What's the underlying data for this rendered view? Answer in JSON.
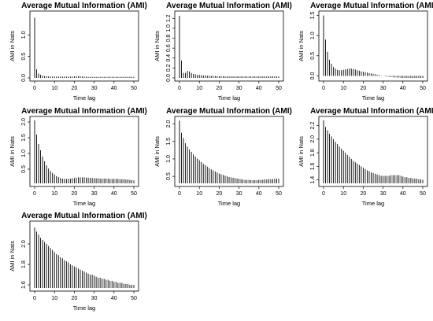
{
  "chart_data": [
    {
      "type": "bar",
      "title": "Average Mutual Information (AMI)",
      "xlabel": "Time lag",
      "ylabel": "AMI in Nats",
      "xlim": [
        0,
        50
      ],
      "ylim": [
        0,
        1.5
      ],
      "xticks": [
        0,
        10,
        20,
        30,
        40,
        50
      ],
      "yticks": [
        0.0,
        0.5,
        1.0
      ],
      "x": [
        0,
        1,
        2,
        3,
        4,
        5,
        6,
        7,
        8,
        9,
        10,
        11,
        12,
        13,
        14,
        15,
        16,
        17,
        18,
        19,
        20,
        21,
        22,
        23,
        24,
        25,
        26,
        27,
        28,
        29,
        30,
        31,
        32,
        33,
        34,
        35,
        36,
        37,
        38,
        39,
        40,
        41,
        42,
        43,
        44,
        45,
        46,
        47,
        48,
        49,
        50
      ],
      "values": [
        1.4,
        0.2,
        0.1,
        0.07,
        0.05,
        0.04,
        0.04,
        0.035,
        0.03,
        0.03,
        0.03,
        0.03,
        0.03,
        0.03,
        0.03,
        0.03,
        0.03,
        0.03,
        0.03,
        0.03,
        0.035,
        0.04,
        0.04,
        0.04,
        0.035,
        0.03,
        0.03,
        0.025,
        0.025,
        0.025,
        0.025,
        0.025,
        0.025,
        0.025,
        0.025,
        0.025,
        0.025,
        0.025,
        0.025,
        0.025,
        0.025,
        0.025,
        0.025,
        0.025,
        0.025,
        0.025,
        0.025,
        0.025,
        0.025,
        0.025,
        0.025
      ]
    },
    {
      "type": "bar",
      "title": "Average Mutual Information (AMI)",
      "xlabel": "Time lag",
      "ylabel": "AMI in Nats",
      "xlim": [
        0,
        50
      ],
      "ylim": [
        0,
        1.3
      ],
      "xticks": [
        0,
        10,
        20,
        30,
        40,
        50
      ],
      "yticks": [
        0.0,
        0.2,
        0.4,
        0.6,
        0.8,
        1.0,
        1.2
      ],
      "x": [
        0,
        1,
        2,
        3,
        4,
        5,
        6,
        7,
        8,
        9,
        10,
        11,
        12,
        13,
        14,
        15,
        16,
        17,
        18,
        19,
        20,
        21,
        22,
        23,
        24,
        25,
        26,
        27,
        28,
        29,
        30,
        31,
        32,
        33,
        34,
        35,
        36,
        37,
        38,
        39,
        40,
        41,
        42,
        43,
        44,
        45,
        46,
        47,
        48,
        49,
        50
      ],
      "values": [
        1.25,
        0.35,
        0.1,
        0.1,
        0.14,
        0.13,
        0.1,
        0.08,
        0.07,
        0.06,
        0.06,
        0.055,
        0.05,
        0.05,
        0.045,
        0.045,
        0.04,
        0.04,
        0.04,
        0.035,
        0.035,
        0.035,
        0.035,
        0.03,
        0.03,
        0.03,
        0.03,
        0.03,
        0.03,
        0.03,
        0.03,
        0.03,
        0.03,
        0.03,
        0.03,
        0.03,
        0.03,
        0.03,
        0.03,
        0.03,
        0.03,
        0.03,
        0.03,
        0.03,
        0.03,
        0.03,
        0.03,
        0.03,
        0.03,
        0.03,
        0.03
      ]
    },
    {
      "type": "bar",
      "title": "Average Mutual Information (AMI)",
      "xlabel": "Time lag",
      "ylabel": "AMI in Nats",
      "xlim": [
        0,
        50
      ],
      "ylim": [
        -0.05,
        1.55
      ],
      "xticks": [
        0,
        10,
        20,
        30,
        40,
        50
      ],
      "yticks": [
        0.0,
        0.5,
        1.0,
        1.5
      ],
      "x": [
        0,
        1,
        2,
        3,
        4,
        5,
        6,
        7,
        8,
        9,
        10,
        11,
        12,
        13,
        14,
        15,
        16,
        17,
        18,
        19,
        20,
        21,
        22,
        23,
        24,
        25,
        26,
        27,
        28,
        29,
        30,
        31,
        32,
        33,
        34,
        35,
        36,
        37,
        38,
        39,
        40,
        41,
        42,
        43,
        44,
        45,
        46,
        47,
        48,
        49,
        50
      ],
      "values": [
        1.5,
        0.9,
        0.6,
        0.4,
        0.3,
        0.22,
        0.18,
        0.15,
        0.14,
        0.14,
        0.15,
        0.16,
        0.17,
        0.18,
        0.18,
        0.17,
        0.16,
        0.14,
        0.13,
        0.11,
        0.1,
        0.09,
        0.08,
        0.07,
        0.06,
        0.05,
        0.04,
        0.03,
        0.02,
        0.01,
        0.0,
        -0.01,
        -0.02,
        -0.02,
        -0.03,
        -0.03,
        -0.04,
        -0.04,
        -0.04,
        -0.05,
        -0.05,
        -0.05,
        -0.05,
        -0.05,
        -0.05,
        -0.05,
        -0.05,
        -0.05,
        -0.05,
        -0.05,
        -0.05
      ]
    },
    {
      "type": "bar",
      "title": "Average Mutual Information (AMI)",
      "xlabel": "Time lag",
      "ylabel": "AMI in Nats",
      "xlim": [
        0,
        50
      ],
      "ylim": [
        0.05,
        2.1
      ],
      "xticks": [
        0,
        10,
        20,
        30,
        40,
        50
      ],
      "yticks": [
        0.5,
        1.0,
        1.5,
        2.0
      ],
      "x": [
        0,
        1,
        2,
        3,
        4,
        5,
        6,
        7,
        8,
        9,
        10,
        11,
        12,
        13,
        14,
        15,
        16,
        17,
        18,
        19,
        20,
        21,
        22,
        23,
        24,
        25,
        26,
        27,
        28,
        29,
        30,
        31,
        32,
        33,
        34,
        35,
        36,
        37,
        38,
        39,
        40,
        41,
        42,
        43,
        44,
        45,
        46,
        47,
        48,
        49,
        50
      ],
      "values": [
        2.05,
        1.6,
        1.3,
        1.1,
        0.9,
        0.75,
        0.62,
        0.52,
        0.44,
        0.38,
        0.33,
        0.28,
        0.25,
        0.22,
        0.2,
        0.19,
        0.19,
        0.19,
        0.2,
        0.21,
        0.22,
        0.23,
        0.24,
        0.24,
        0.24,
        0.24,
        0.23,
        0.23,
        0.22,
        0.22,
        0.21,
        0.21,
        0.21,
        0.2,
        0.2,
        0.2,
        0.2,
        0.2,
        0.19,
        0.19,
        0.19,
        0.19,
        0.19,
        0.18,
        0.18,
        0.18,
        0.17,
        0.17,
        0.16,
        0.15,
        0.14
      ]
    },
    {
      "type": "bar",
      "title": "Average Mutual Information (AMI)",
      "xlabel": "Time lag",
      "ylabel": "AMI in Nats",
      "xlim": [
        0,
        50
      ],
      "ylim": [
        0.3,
        2.15
      ],
      "xticks": [
        0,
        10,
        20,
        30,
        40,
        50
      ],
      "yticks": [
        0.5,
        1.0,
        1.5,
        2.0
      ],
      "x": [
        0,
        1,
        2,
        3,
        4,
        5,
        6,
        7,
        8,
        9,
        10,
        11,
        12,
        13,
        14,
        15,
        16,
        17,
        18,
        19,
        20,
        21,
        22,
        23,
        24,
        25,
        26,
        27,
        28,
        29,
        30,
        31,
        32,
        33,
        34,
        35,
        36,
        37,
        38,
        39,
        40,
        41,
        42,
        43,
        44,
        45,
        46,
        47,
        48,
        49,
        50
      ],
      "values": [
        2.1,
        1.75,
        1.6,
        1.45,
        1.35,
        1.27,
        1.2,
        1.13,
        1.07,
        1.01,
        0.96,
        0.91,
        0.86,
        0.82,
        0.78,
        0.74,
        0.7,
        0.67,
        0.64,
        0.61,
        0.58,
        0.56,
        0.54,
        0.52,
        0.5,
        0.48,
        0.47,
        0.46,
        0.45,
        0.44,
        0.43,
        0.42,
        0.41,
        0.4,
        0.4,
        0.4,
        0.39,
        0.39,
        0.39,
        0.39,
        0.4,
        0.4,
        0.4,
        0.41,
        0.41,
        0.42,
        0.42,
        0.42,
        0.43,
        0.43,
        0.43
      ]
    },
    {
      "type": "bar",
      "title": "Average Mutual Information (AMI)",
      "xlabel": "Time lag",
      "ylabel": "AMI in Nats",
      "xlim": [
        0,
        50
      ],
      "ylim": [
        1.35,
        2.3
      ],
      "xticks": [
        0,
        10,
        20,
        30,
        40,
        50
      ],
      "yticks": [
        1.4,
        1.6,
        1.8,
        2.0,
        2.2
      ],
      "x": [
        0,
        1,
        2,
        3,
        4,
        5,
        6,
        7,
        8,
        9,
        10,
        11,
        12,
        13,
        14,
        15,
        16,
        17,
        18,
        19,
        20,
        21,
        22,
        23,
        24,
        25,
        26,
        27,
        28,
        29,
        30,
        31,
        32,
        33,
        34,
        35,
        36,
        37,
        38,
        39,
        40,
        41,
        42,
        43,
        44,
        45,
        46,
        47,
        48,
        49,
        50
      ],
      "values": [
        2.28,
        2.18,
        2.13,
        2.08,
        2.04,
        2.0,
        1.96,
        1.93,
        1.89,
        1.86,
        1.83,
        1.8,
        1.77,
        1.74,
        1.71,
        1.68,
        1.66,
        1.64,
        1.62,
        1.6,
        1.58,
        1.56,
        1.54,
        1.53,
        1.51,
        1.5,
        1.49,
        1.48,
        1.47,
        1.46,
        1.46,
        1.46,
        1.46,
        1.46,
        1.47,
        1.47,
        1.47,
        1.47,
        1.47,
        1.46,
        1.45,
        1.44,
        1.44,
        1.43,
        1.43,
        1.42,
        1.42,
        1.42,
        1.41,
        1.41,
        1.4
      ]
    },
    {
      "type": "bar",
      "title": "Average Mutual Information (AMI)",
      "xlabel": "Time lag",
      "ylabel": "AMI in Nats",
      "xlim": [
        0,
        50
      ],
      "ylim": [
        1.57,
        2.2
      ],
      "xticks": [
        0,
        10,
        20,
        30,
        40,
        50
      ],
      "yticks": [
        1.6,
        1.8,
        2.0
      ],
      "x": [
        0,
        1,
        2,
        3,
        4,
        5,
        6,
        7,
        8,
        9,
        10,
        11,
        12,
        13,
        14,
        15,
        16,
        17,
        18,
        19,
        20,
        21,
        22,
        23,
        24,
        25,
        26,
        27,
        28,
        29,
        30,
        31,
        32,
        33,
        34,
        35,
        36,
        37,
        38,
        39,
        40,
        41,
        42,
        43,
        44,
        45,
        46,
        47,
        48,
        49,
        50
      ],
      "values": [
        2.16,
        2.12,
        2.09,
        2.06,
        2.04,
        2.02,
        2.0,
        1.98,
        1.96,
        1.94,
        1.92,
        1.9,
        1.89,
        1.87,
        1.86,
        1.84,
        1.83,
        1.82,
        1.8,
        1.79,
        1.78,
        1.77,
        1.76,
        1.75,
        1.74,
        1.73,
        1.72,
        1.71,
        1.7,
        1.7,
        1.69,
        1.68,
        1.67,
        1.67,
        1.66,
        1.66,
        1.65,
        1.65,
        1.64,
        1.64,
        1.63,
        1.63,
        1.62,
        1.62,
        1.62,
        1.61,
        1.61,
        1.61,
        1.6,
        1.6,
        1.6
      ]
    }
  ]
}
